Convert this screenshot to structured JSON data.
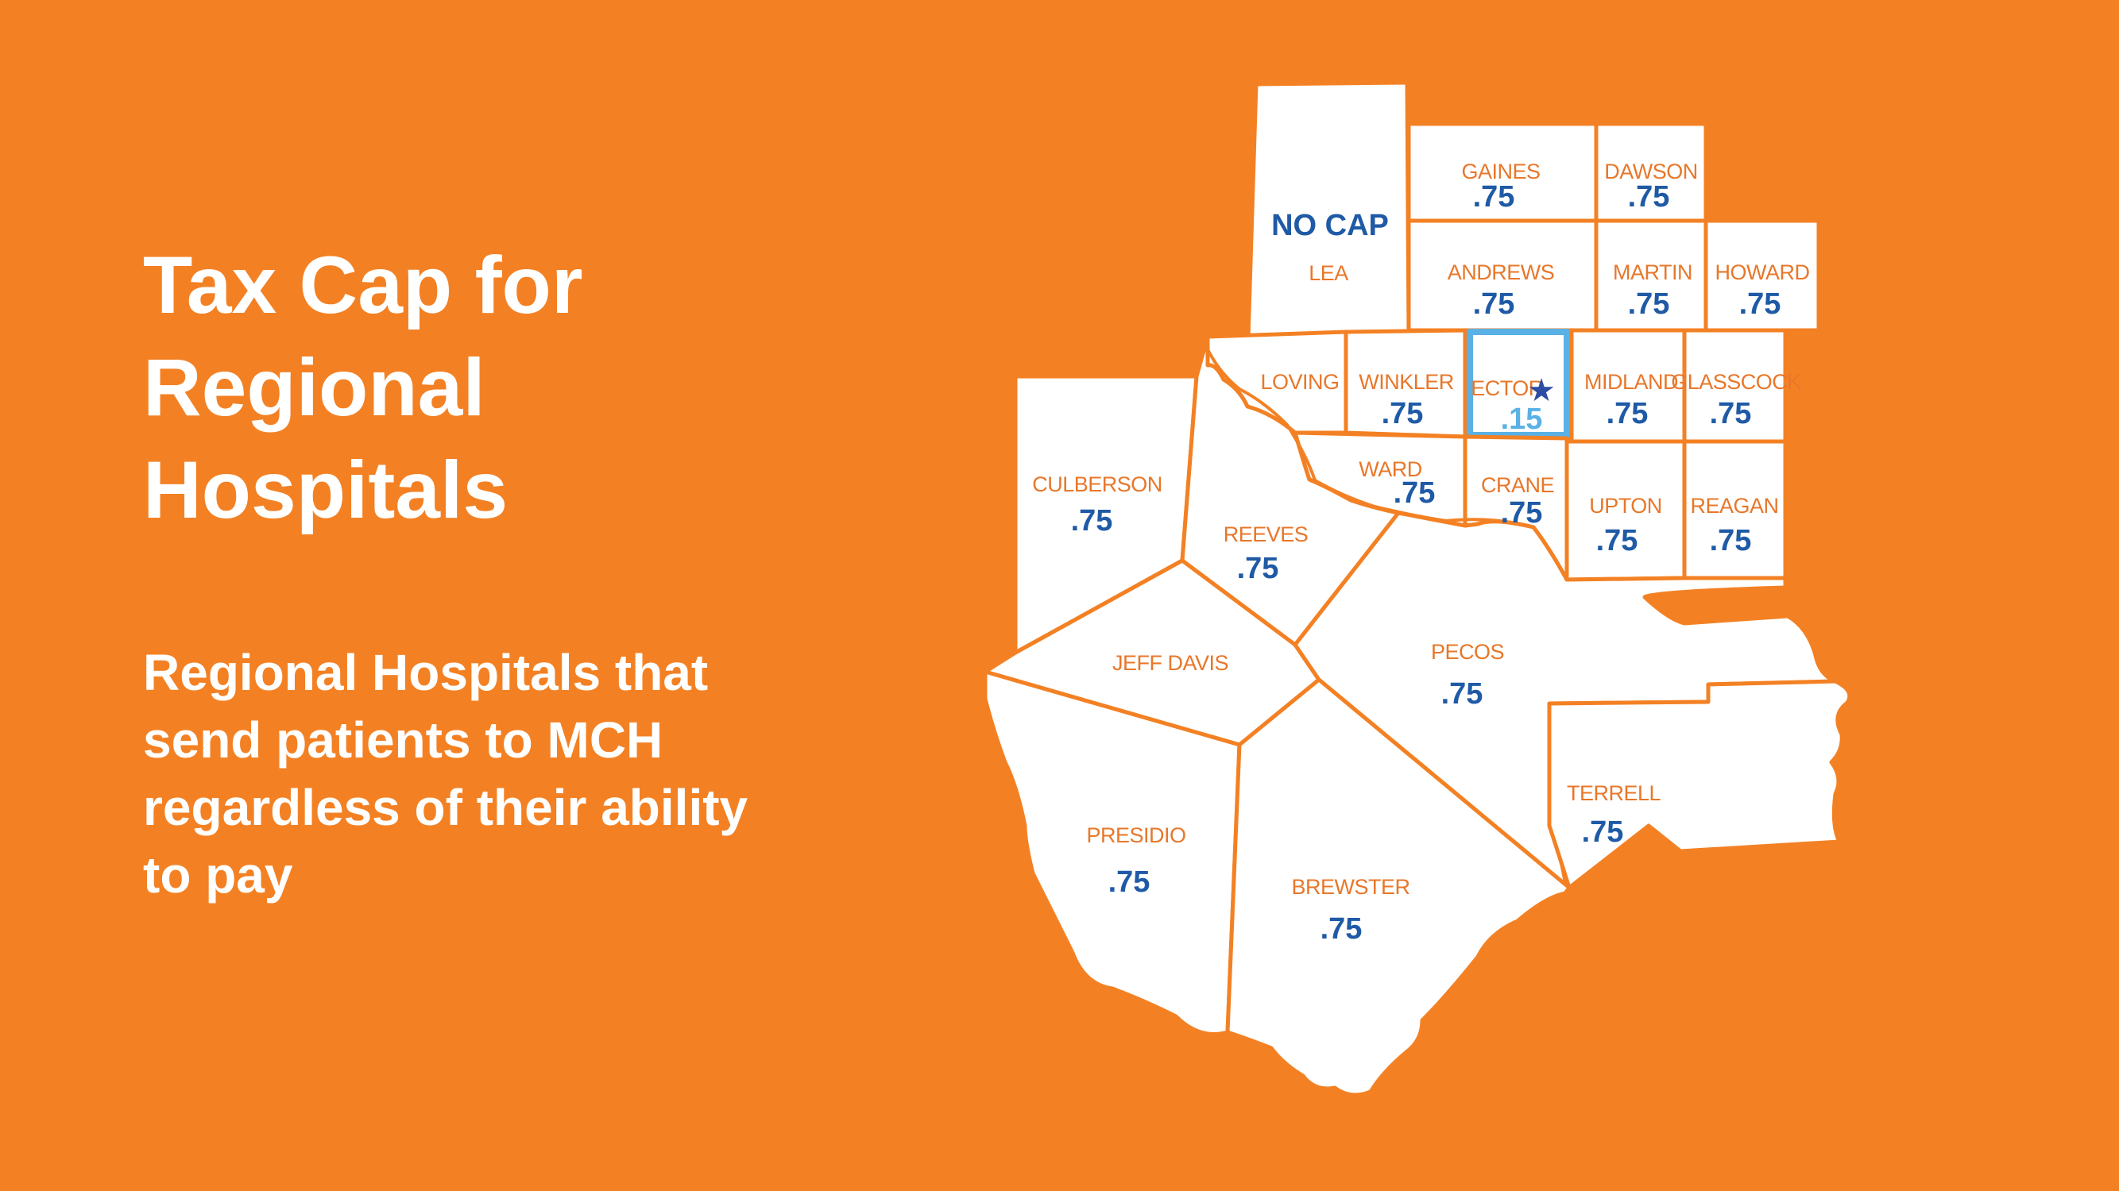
{
  "slide": {
    "title_lines": [
      "Tax Cap for",
      "Regional",
      "Hospitals"
    ],
    "subtitle_lines": [
      "Regional Hospitals that",
      "send patients to MCH",
      "regardless of their ability",
      "to pay"
    ]
  },
  "colors": {
    "background": "#F38124",
    "county_fill": "#ffffff",
    "county_label": "#E8772A",
    "cap_value": "#1F5AA6",
    "ector_highlight": "#5AB1E5"
  },
  "map": {
    "counties": {
      "lea": {
        "name": "LEA",
        "cap": "NO CAP"
      },
      "gaines": {
        "name": "GAINES",
        "cap": ".75"
      },
      "dawson": {
        "name": "DAWSON",
        "cap": ".75"
      },
      "andrews": {
        "name": "ANDREWS",
        "cap": ".75"
      },
      "martin": {
        "name": "MARTIN",
        "cap": ".75"
      },
      "howard": {
        "name": "HOWARD",
        "cap": ".75"
      },
      "loving": {
        "name": "LOVING",
        "cap": ""
      },
      "winkler": {
        "name": "WINKLER",
        "cap": ".75"
      },
      "ector": {
        "name": "ECTOR",
        "cap": ".15",
        "marker": "star-icon"
      },
      "midland": {
        "name": "MIDLAND",
        "cap": ".75"
      },
      "glasscock": {
        "name": "GLASSCOCK",
        "cap": ".75"
      },
      "culberson": {
        "name": "CULBERSON",
        "cap": ".75"
      },
      "ward": {
        "name": "WARD",
        "cap": ".75"
      },
      "crane": {
        "name": "CRANE",
        "cap": ".75"
      },
      "upton": {
        "name": "UPTON",
        "cap": ".75"
      },
      "reagan": {
        "name": "REAGAN",
        "cap": ".75"
      },
      "reeves": {
        "name": "REEVES",
        "cap": ".75"
      },
      "jeffdavis": {
        "name": "JEFF DAVIS",
        "cap": ""
      },
      "pecos": {
        "name": "PECOS",
        "cap": ".75"
      },
      "terrell": {
        "name": "TERRELL",
        "cap": ".75"
      },
      "presidio": {
        "name": "PRESIDIO",
        "cap": ".75"
      },
      "brewster": {
        "name": "BREWSTER",
        "cap": ".75"
      }
    }
  }
}
